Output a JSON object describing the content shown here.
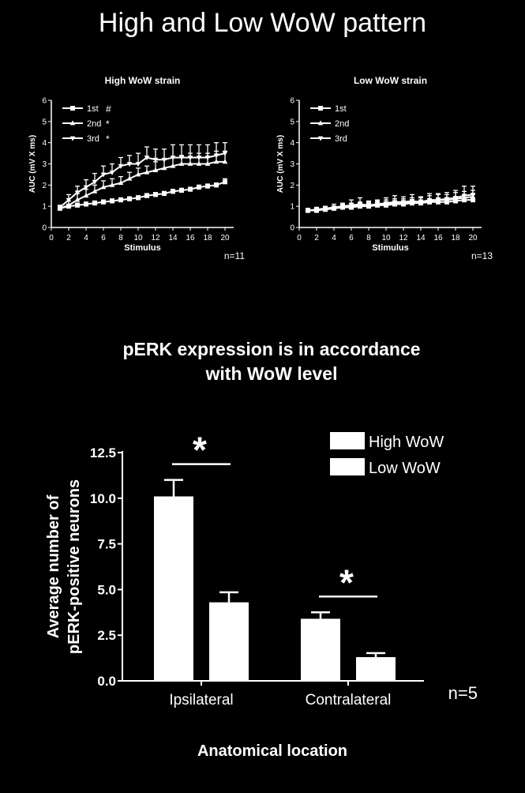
{
  "page": {
    "title": "High and Low WoW pattern",
    "section_title_line1": "pERK expression is in accordance",
    "section_title_line2": "with WoW level"
  },
  "chart_data": [
    {
      "type": "line",
      "title": "High WoW strain",
      "xlabel": "Stimulus",
      "ylabel": "AUC (mV X ms)",
      "xlim": [
        0,
        21
      ],
      "ylim": [
        0,
        6
      ],
      "xticks": [
        0,
        2,
        4,
        6,
        8,
        10,
        12,
        14,
        16,
        18,
        20
      ],
      "yticks": [
        0,
        1,
        2,
        3,
        4,
        5,
        6
      ],
      "x": [
        1,
        2,
        3,
        4,
        5,
        6,
        7,
        8,
        9,
        10,
        11,
        12,
        13,
        14,
        15,
        16,
        17,
        18,
        19,
        20
      ],
      "series": [
        {
          "name": "1st",
          "marker": "square",
          "marker_note": "#",
          "values": [
            0.9,
            1.0,
            1.05,
            1.1,
            1.15,
            1.2,
            1.25,
            1.3,
            1.35,
            1.4,
            1.5,
            1.55,
            1.6,
            1.7,
            1.75,
            1.8,
            1.9,
            1.95,
            2.0,
            2.15
          ],
          "errors": [
            0.1,
            0.1,
            0.1,
            0.1,
            0.1,
            0.1,
            0.1,
            0.1,
            0.1,
            0.1,
            0.1,
            0.1,
            0.1,
            0.1,
            0.1,
            0.1,
            0.1,
            0.1,
            0.1,
            0.15
          ]
        },
        {
          "name": "2nd",
          "marker": "triangle-up",
          "marker_note": "*",
          "values": [
            0.9,
            1.05,
            1.3,
            1.5,
            1.7,
            1.9,
            2.0,
            2.1,
            2.3,
            2.5,
            2.6,
            2.7,
            2.8,
            2.9,
            3.0,
            3.0,
            3.0,
            3.0,
            3.1,
            3.1
          ],
          "errors": [
            0.1,
            0.2,
            0.3,
            0.3,
            0.3,
            0.3,
            0.3,
            0.3,
            0.3,
            0.3,
            0.3,
            0.4,
            0.4,
            0.4,
            0.4,
            0.5,
            0.5,
            0.5,
            0.5,
            0.5
          ]
        },
        {
          "name": "3rd",
          "marker": "triangle-down",
          "marker_note": "*",
          "values": [
            0.95,
            1.3,
            1.65,
            1.9,
            2.15,
            2.5,
            2.6,
            2.9,
            3.0,
            3.0,
            3.3,
            3.2,
            3.2,
            3.3,
            3.3,
            3.3,
            3.3,
            3.3,
            3.4,
            3.5
          ],
          "errors": [
            0.1,
            0.25,
            0.3,
            0.35,
            0.4,
            0.4,
            0.4,
            0.4,
            0.4,
            0.5,
            0.5,
            0.5,
            0.5,
            0.6,
            0.6,
            0.6,
            0.6,
            0.6,
            0.6,
            0.5
          ]
        }
      ],
      "annotation": "n=11"
    },
    {
      "type": "line",
      "title": "Low WoW strain",
      "xlabel": "Stimulus",
      "ylabel": "AUC (mV X ms)",
      "xlim": [
        0,
        21
      ],
      "ylim": [
        0,
        6
      ],
      "xticks": [
        0,
        2,
        4,
        6,
        8,
        10,
        12,
        14,
        16,
        18,
        20
      ],
      "yticks": [
        0,
        1,
        2,
        3,
        4,
        5,
        6
      ],
      "x": [
        1,
        2,
        3,
        4,
        5,
        6,
        7,
        8,
        9,
        10,
        11,
        12,
        13,
        14,
        15,
        16,
        17,
        18,
        19,
        20
      ],
      "series": [
        {
          "name": "1st",
          "marker": "square",
          "values": [
            0.8,
            0.8,
            0.85,
            0.9,
            0.95,
            0.95,
            1.0,
            1.0,
            1.05,
            1.05,
            1.1,
            1.1,
            1.15,
            1.15,
            1.2,
            1.2,
            1.2,
            1.25,
            1.3,
            1.3
          ],
          "errors": [
            0.1,
            0.1,
            0.1,
            0.1,
            0.1,
            0.1,
            0.15,
            0.15,
            0.15,
            0.15,
            0.15,
            0.15,
            0.15,
            0.15,
            0.15,
            0.2,
            0.2,
            0.2,
            0.2,
            0.25
          ]
        },
        {
          "name": "2nd",
          "marker": "triangle-up",
          "values": [
            0.8,
            0.85,
            0.85,
            0.9,
            0.95,
            1.0,
            1.05,
            1.05,
            1.1,
            1.1,
            1.15,
            1.15,
            1.2,
            1.2,
            1.25,
            1.3,
            1.3,
            1.35,
            1.4,
            1.45
          ],
          "errors": [
            0.1,
            0.1,
            0.1,
            0.1,
            0.15,
            0.15,
            0.15,
            0.15,
            0.15,
            0.2,
            0.2,
            0.2,
            0.2,
            0.2,
            0.25,
            0.25,
            0.25,
            0.3,
            0.3,
            0.3
          ]
        },
        {
          "name": "3rd",
          "marker": "triangle-down",
          "values": [
            0.8,
            0.85,
            0.9,
            0.95,
            1.0,
            1.05,
            1.1,
            1.05,
            1.1,
            1.15,
            1.2,
            1.2,
            1.25,
            1.2,
            1.3,
            1.3,
            1.35,
            1.4,
            1.5,
            1.55
          ],
          "errors": [
            0.1,
            0.1,
            0.1,
            0.15,
            0.15,
            0.25,
            0.3,
            0.2,
            0.2,
            0.25,
            0.3,
            0.25,
            0.3,
            0.25,
            0.3,
            0.3,
            0.3,
            0.35,
            0.45,
            0.4
          ]
        }
      ],
      "annotation": "n=13"
    },
    {
      "type": "bar",
      "title": "",
      "xlabel": "Anatomical location",
      "ylabel_line1": "Average number of",
      "ylabel_line2": "pERK-positive neurons",
      "categories": [
        "Ipsilateral",
        "Contralateral"
      ],
      "ylim": [
        0,
        12.5
      ],
      "yticks": [
        0.0,
        2.5,
        5.0,
        7.5,
        10.0,
        12.5
      ],
      "ytick_labels": [
        "0.0",
        "2.5",
        "5.0",
        "7.5",
        "10.0",
        "12.5"
      ],
      "series": [
        {
          "name": "High WoW",
          "values": [
            10.1,
            3.4
          ],
          "errors": [
            0.9,
            0.35
          ]
        },
        {
          "name": "Low WoW",
          "values": [
            4.3,
            1.3
          ],
          "errors": [
            0.55,
            0.22
          ]
        }
      ],
      "significance": [
        "*",
        "*"
      ],
      "annotation": "n=5",
      "legend": "top-right",
      "colors": {
        "bar": "#ffffff",
        "background": "#000000",
        "axis": "#ffffff"
      }
    }
  ]
}
